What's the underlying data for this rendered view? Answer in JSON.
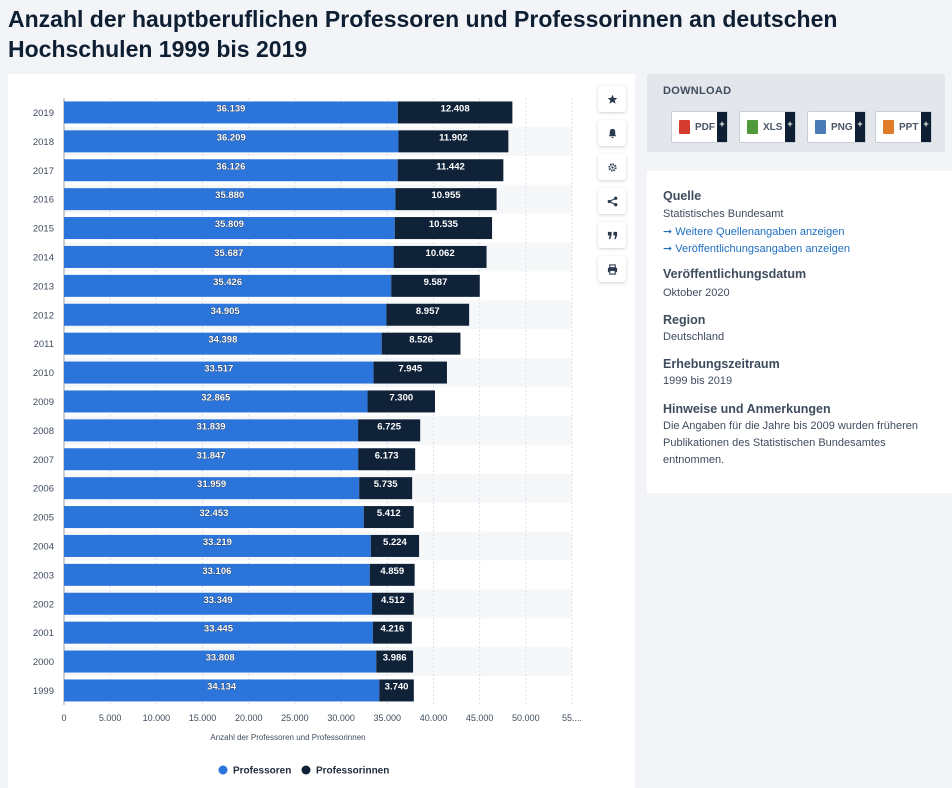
{
  "page": {
    "title": "Anzahl der hauptberuflichen Professoren und Professorinnen an deutschen Hochschulen 1999 bis 2019"
  },
  "colors": {
    "professoren": "#2b74d9",
    "professorinnen": "#0f2238",
    "band": "#f6f7f9",
    "grid": "#dde1e6"
  },
  "chart_data": {
    "type": "bar",
    "orientation": "horizontal",
    "stacked": true,
    "categories": [
      "2019",
      "2018",
      "2017",
      "2016",
      "2015",
      "2014",
      "2013",
      "2012",
      "2011",
      "2010",
      "2009",
      "2008",
      "2007",
      "2006",
      "2005",
      "2004",
      "2003",
      "2002",
      "2001",
      "2000",
      "1999"
    ],
    "series": [
      {
        "name": "Professoren",
        "values": [
          36139,
          36209,
          36126,
          35880,
          35809,
          35687,
          35426,
          34905,
          34398,
          33517,
          32865,
          31839,
          31847,
          31959,
          32453,
          33219,
          33106,
          33349,
          33445,
          33808,
          34134
        ],
        "labels": [
          "36.139",
          "36.209",
          "36.126",
          "35.880",
          "35.809",
          "35.687",
          "35.426",
          "34.905",
          "34.398",
          "33.517",
          "32.865",
          "31.839",
          "31.847",
          "31.959",
          "32.453",
          "33.219",
          "33.106",
          "33.349",
          "33.445",
          "33.808",
          "34.134"
        ]
      },
      {
        "name": "Professorinnen",
        "values": [
          12408,
          11902,
          11442,
          10955,
          10535,
          10062,
          9587,
          8957,
          8526,
          7945,
          7300,
          6725,
          6173,
          5735,
          5412,
          5224,
          4859,
          4512,
          4216,
          3986,
          3740
        ],
        "labels": [
          "12.408",
          "11.902",
          "11.442",
          "10.955",
          "10.535",
          "10.062",
          "9.587",
          "8.957",
          "8.526",
          "7.945",
          "7.300",
          "6.725",
          "6.173",
          "5.735",
          "5.412",
          "5.224",
          "4.859",
          "4.512",
          "4.216",
          "3.986",
          "3.740"
        ]
      }
    ],
    "xlim": [
      0,
      55000
    ],
    "xticks": [
      0,
      5000,
      10000,
      15000,
      20000,
      25000,
      30000,
      35000,
      40000,
      45000,
      50000,
      55000
    ],
    "xtick_labels": [
      "0",
      "5.000",
      "10.000",
      "15.000",
      "20.000",
      "25.000",
      "30.000",
      "35.000",
      "40.000",
      "45.000",
      "50.000",
      "55...."
    ],
    "xlabel": "Anzahl der Professoren und Professorinnen",
    "ylabel": "",
    "legend": [
      "Professoren",
      "Professorinnen"
    ],
    "legend_position": "bottom-center"
  },
  "tools": [
    {
      "name": "star-icon"
    },
    {
      "name": "bell-icon"
    },
    {
      "name": "gear-icon"
    },
    {
      "name": "share-icon"
    },
    {
      "name": "quote-icon"
    },
    {
      "name": "print-icon"
    }
  ],
  "download": {
    "title": "DOWNLOAD",
    "buttons": [
      {
        "label": "PDF",
        "color": "#d63b2f"
      },
      {
        "label": "XLS",
        "color": "#4f9a3b"
      },
      {
        "label": "PNG",
        "color": "#4a7bb7"
      },
      {
        "label": "PPT",
        "color": "#e07b2a"
      }
    ],
    "plus": "+"
  },
  "info": {
    "source_heading": "Quelle",
    "source_value": "Statistisches Bundesamt",
    "link_more_sources": "➞ Weitere Quellenangaben anzeigen",
    "link_publication": "➞ Veröffentlichungsangaben anzeigen",
    "published_heading": "Veröffentlichungsdatum",
    "published_value": "Oktober 2020",
    "region_heading": "Region",
    "region_value": "Deutschland",
    "period_heading": "Erhebungszeitraum",
    "period_value": "1999 bis 2019",
    "notes_heading": "Hinweise und Anmerkungen",
    "notes_value": "Die Angaben für die Jahre bis 2009 wurden früheren Publikationen des Statistischen Bundesamtes entnommen."
  }
}
